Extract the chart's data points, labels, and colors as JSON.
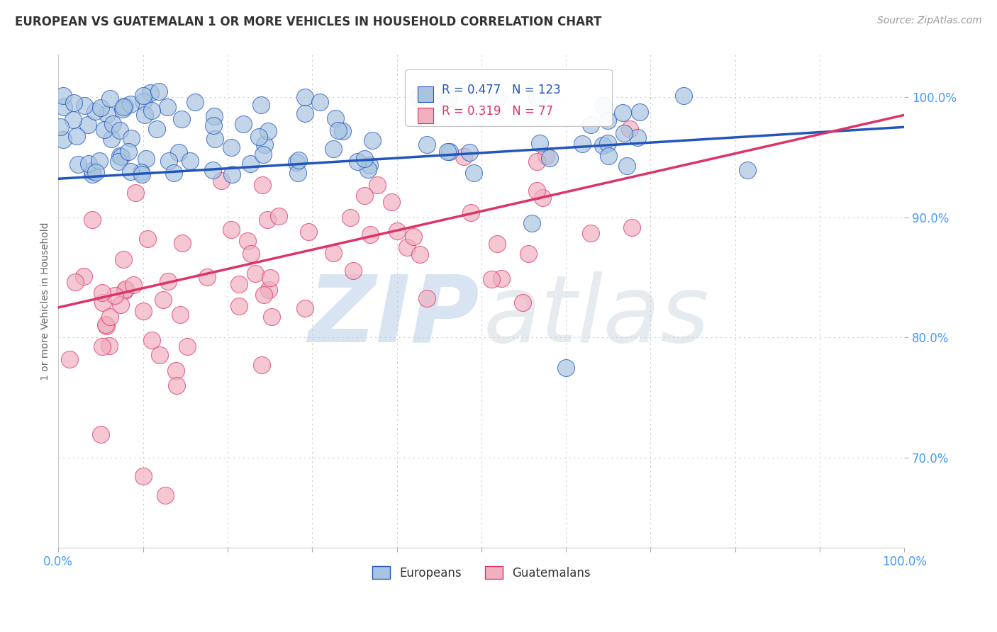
{
  "title": "EUROPEAN VS GUATEMALAN 1 OR MORE VEHICLES IN HOUSEHOLD CORRELATION CHART",
  "source": "Source: ZipAtlas.com",
  "ylabel": "1 or more Vehicles in Household",
  "european_R": 0.477,
  "european_N": 123,
  "guatemalan_R": 0.319,
  "guatemalan_N": 77,
  "european_color": "#a8c4e0",
  "guatemalan_color": "#f0b0c0",
  "european_line_color": "#2255bb",
  "guatemalan_line_color": "#dd3366",
  "legend_european": "Europeans",
  "legend_guatemalan": "Guatemalans",
  "background_color": "#ffffff",
  "tick_color": "#4499ff",
  "xlim": [
    0.0,
    1.0
  ],
  "ylim": [
    0.625,
    1.035
  ],
  "eu_line_y0": 0.932,
  "eu_line_y1": 0.975,
  "gu_line_y0": 0.825,
  "gu_line_y1": 0.985,
  "yticks": [
    0.7,
    0.8,
    0.9,
    1.0
  ],
  "ytick_labels": [
    "70.0%",
    "80.0%",
    "90.0%",
    "100.0%"
  ],
  "title_fontsize": 12,
  "title_color": "#333333"
}
